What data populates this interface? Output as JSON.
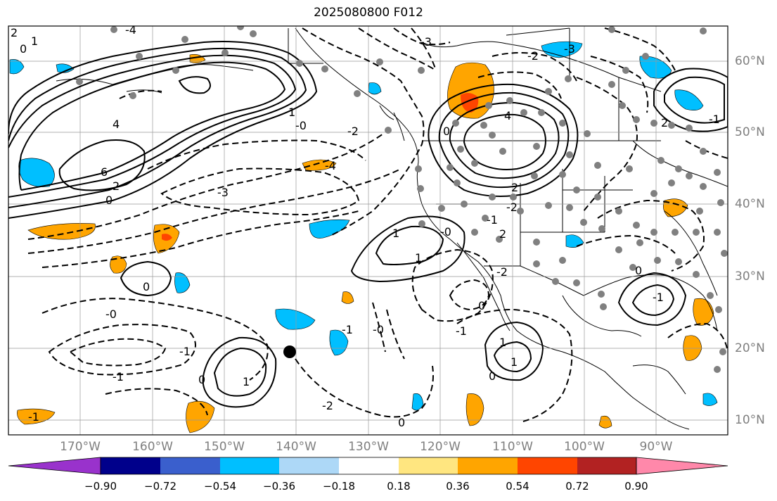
{
  "title": "2025080800 F012",
  "lat_labels": [
    "60°N",
    "50°N",
    "40°N",
    "30°N",
    "20°N",
    "10°N"
  ],
  "lon_labels": [
    "170°W",
    "160°W",
    "150°W",
    "140°W",
    "130°W",
    "120°W",
    "110°W",
    "100°W",
    "90°W"
  ],
  "colorbar": {
    "ticks": [
      "−0.90",
      "−0.72",
      "−0.54",
      "−0.36",
      "−0.18",
      "0.18",
      "0.36",
      "0.54",
      "0.72",
      "0.90"
    ],
    "colors": [
      "#9932cc",
      "#00008b",
      "#3a5fcd",
      "#00bfff",
      "#add8f7",
      "#ffffff",
      "#ffe680",
      "#ffa500",
      "#ff4500",
      "#b22222",
      "#ff88aa"
    ]
  },
  "contour_labels": [
    "2",
    "0",
    "1",
    "-4",
    "4",
    "6",
    "0",
    "2",
    "-0",
    "-2",
    "-3",
    "-4",
    "-3",
    "1",
    "0",
    "4",
    "-2",
    "2",
    "-3",
    "-2",
    "-1",
    "2",
    "1",
    "-0",
    "1",
    "-2",
    "0",
    "-0",
    "-1",
    "-1",
    "-2",
    "0",
    "-1",
    "1",
    "-1",
    "0",
    "1",
    "1",
    "0",
    "-0",
    "-1",
    "0",
    "2",
    "-1",
    "0",
    "-1"
  ],
  "marker": {
    "lat": 19.8,
    "lon": -140.3
  }
}
